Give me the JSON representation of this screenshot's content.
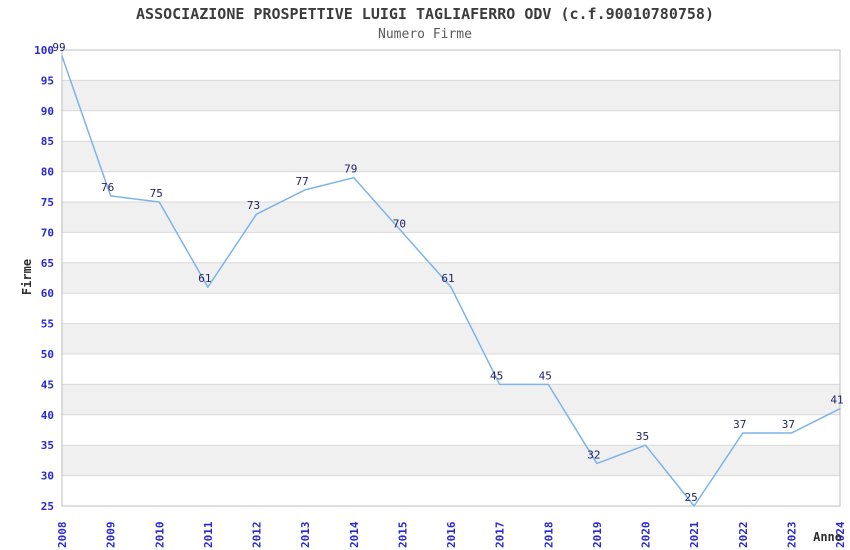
{
  "chart_data": {
    "type": "line",
    "title": "ASSOCIAZIONE PROSPETTIVE LUIGI TAGLIAFERRO ODV (c.f.90010780758)",
    "subtitle": "Numero Firme",
    "xlabel": "Anno",
    "ylabel": "Firme",
    "categories": [
      "2008",
      "2009",
      "2010",
      "2011",
      "2012",
      "2013",
      "2014",
      "2015",
      "2016",
      "2017",
      "2018",
      "2019",
      "2020",
      "2021",
      "2022",
      "2023",
      "2024"
    ],
    "series": [
      {
        "name": "Numero Firme",
        "values": [
          99,
          76,
          75,
          61,
          73,
          77,
          79,
          70,
          61,
          45,
          45,
          32,
          35,
          25,
          37,
          37,
          41
        ]
      }
    ],
    "ylim": [
      25,
      100
    ],
    "ytick_step": 5,
    "grid": true,
    "alternating_bands": true,
    "data_labels": true,
    "legend_position": "none",
    "colors": {
      "line": "#7cb4e8",
      "tick_label": "#2828d6",
      "data_label": "#22226b",
      "band": "#f0f0f0",
      "gridline": "#d9d9d9",
      "plot_border": "#bdbdbd",
      "title": "#3c3c3c",
      "subtitle": "#5a5a5a",
      "axis_title": "#2e2e2e",
      "background": "#ffffff"
    }
  }
}
